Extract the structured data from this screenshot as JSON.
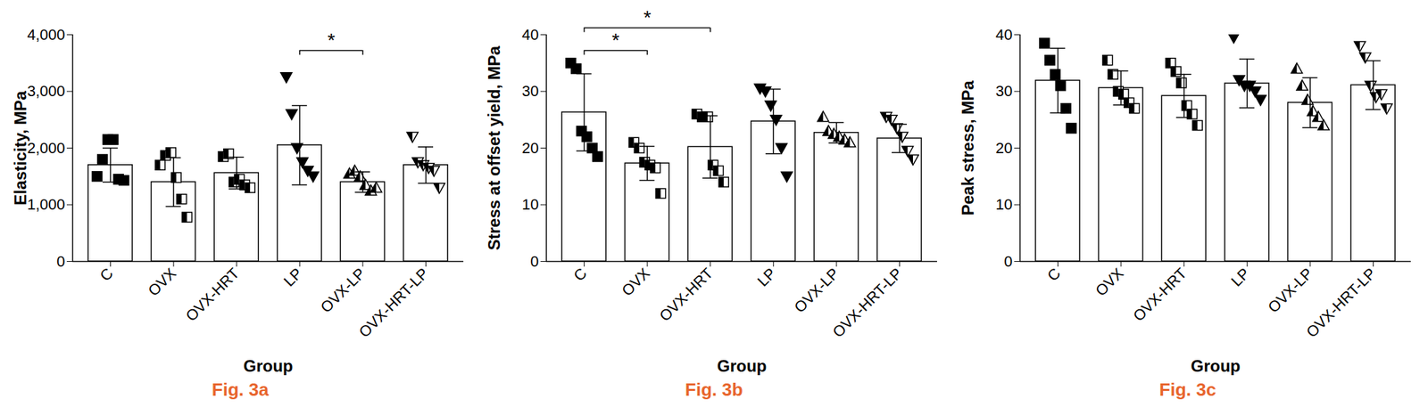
{
  "chart_data": [
    {
      "type": "bar",
      "title": "Fig. 3a",
      "x_label": "Group",
      "y_label": "Elasticity, MPa",
      "categories": [
        "C",
        "OVX",
        "OVX-HRT",
        "LP",
        "OVX-LP",
        "OVX-HRT-LP"
      ],
      "values": [
        1700,
        1400,
        1560,
        2050,
        1400,
        1700
      ],
      "errors": [
        300,
        430,
        280,
        700,
        180,
        320
      ],
      "points": [
        [
          1500,
          1800,
          2150,
          2150,
          1450,
          1430
        ],
        [
          1700,
          1870,
          1920,
          1480,
          1100,
          780
        ],
        [
          1850,
          1900,
          1400,
          1450,
          1350,
          1300
        ],
        [
          3250,
          2600,
          2000,
          1750,
          1600,
          1500
        ],
        [
          1550,
          1600,
          1500,
          1350,
          1250,
          1300
        ],
        [
          2200,
          1750,
          1700,
          1650,
          1600,
          1300
        ]
      ],
      "significance": [
        {
          "groups": [
            "LP",
            "OVX-LP"
          ],
          "label": "*"
        }
      ],
      "ylim": [
        0,
        4000
      ],
      "yticks": [
        0,
        1000,
        2000,
        3000,
        4000
      ],
      "grid": false
    },
    {
      "type": "bar",
      "title": "Fig. 3b",
      "x_label": "Group",
      "y_label": "Stress at offset yield, MPa",
      "categories": [
        "C",
        "OVX",
        "OVX-HRT",
        "LP",
        "OVX-LP",
        "OVX-HRT-LP"
      ],
      "values": [
        26.3,
        17.3,
        20.2,
        24.7,
        22.7,
        21.7
      ],
      "errors": [
        6.8,
        3.0,
        5.5,
        5.7,
        1.8,
        2.5
      ],
      "points": [
        [
          35,
          34,
          23,
          22,
          20,
          18.5
        ],
        [
          21,
          20,
          17.5,
          17,
          16.5,
          12
        ],
        [
          26,
          25.5,
          25.5,
          17,
          16,
          14
        ],
        [
          30.5,
          30,
          27.5,
          25,
          20,
          15
        ],
        [
          25.5,
          23,
          22.5,
          22,
          21.5,
          21
        ],
        [
          25.5,
          25,
          23.5,
          22,
          19.5,
          18
        ]
      ],
      "significance": [
        {
          "groups": [
            "C",
            "OVX"
          ],
          "label": "*"
        },
        {
          "groups": [
            "C",
            "OVX-HRT"
          ],
          "label": "*"
        }
      ],
      "ylim": [
        0,
        40
      ],
      "yticks": [
        0,
        10,
        20,
        30,
        40
      ],
      "grid": false
    },
    {
      "type": "bar",
      "title": "Fig. 3c",
      "x_label": "Group",
      "y_label": "Peak stress, MPa",
      "categories": [
        "C",
        "OVX",
        "OVX-HRT",
        "LP",
        "OVX-LP",
        "OVX-HRT-LP"
      ],
      "values": [
        31.9,
        30.6,
        29.2,
        31.4,
        28.0,
        31.1
      ],
      "errors": [
        5.7,
        3.0,
        3.8,
        4.3,
        4.4,
        4.3
      ],
      "points": [
        [
          38.5,
          35.5,
          33,
          31,
          27,
          23.5
        ],
        [
          35.5,
          33,
          30,
          29.5,
          28,
          27
        ],
        [
          35,
          33.5,
          31.5,
          27.5,
          26,
          24
        ],
        [
          39.5,
          32,
          31,
          31,
          30,
          28.5
        ],
        [
          34,
          31,
          28.5,
          26.5,
          25.5,
          24
        ],
        [
          38,
          36,
          31,
          29,
          29.5,
          27
        ]
      ],
      "significance": [],
      "ylim": [
        0,
        40
      ],
      "yticks": [
        0,
        10,
        20,
        30,
        40
      ],
      "grid": false
    }
  ]
}
